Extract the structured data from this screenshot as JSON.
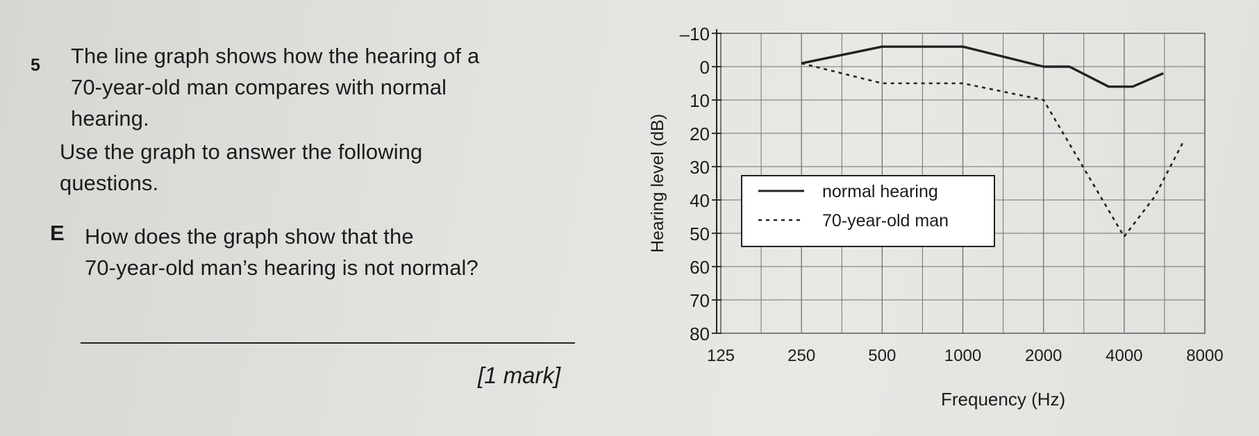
{
  "question": {
    "number": "5",
    "intro_lines": [
      "The line graph shows how the hearing of a",
      "70-year-old man compares with normal",
      "hearing."
    ],
    "instruction_lines": [
      "Use the graph to answer the following",
      "questions."
    ],
    "part_letter": "E",
    "part_lines": [
      "How does the graph show that the",
      "70-year-old man’s hearing is not normal?"
    ],
    "mark": "[1 mark]"
  },
  "chart_data": {
    "type": "line",
    "xlabel": "Frequency (Hz)",
    "ylabel": "Hearing level (dB)",
    "x_scale": "log2",
    "x_ticks": [
      125,
      250,
      500,
      1000,
      2000,
      4000,
      8000
    ],
    "x_tick_labels": [
      "125",
      "250",
      "500",
      "1000",
      "2000",
      "4000",
      "8000"
    ],
    "y_ticks": [
      -10,
      0,
      10,
      20,
      30,
      40,
      50,
      60,
      70,
      80
    ],
    "y_tick_labels": [
      "–10",
      "0",
      "10",
      "20",
      "30",
      "40",
      "50",
      "60",
      "70",
      "80"
    ],
    "ylim": [
      -10,
      80
    ],
    "y_inverted": true,
    "grid": true,
    "legend_position": "middle",
    "series": [
      {
        "name": "normal hearing",
        "style": "solid",
        "x": [
          250,
          500,
          1000,
          2000,
          2500,
          3500,
          4300,
          5600
        ],
        "y": [
          -1,
          -6,
          -6,
          0,
          0,
          6,
          6,
          2
        ]
      },
      {
        "name": "70-year-old man",
        "style": "dashed",
        "x": [
          250,
          500,
          1000,
          2000,
          4000,
          5200,
          6700
        ],
        "y": [
          -1,
          5,
          5,
          10,
          51,
          39,
          22
        ]
      }
    ]
  }
}
